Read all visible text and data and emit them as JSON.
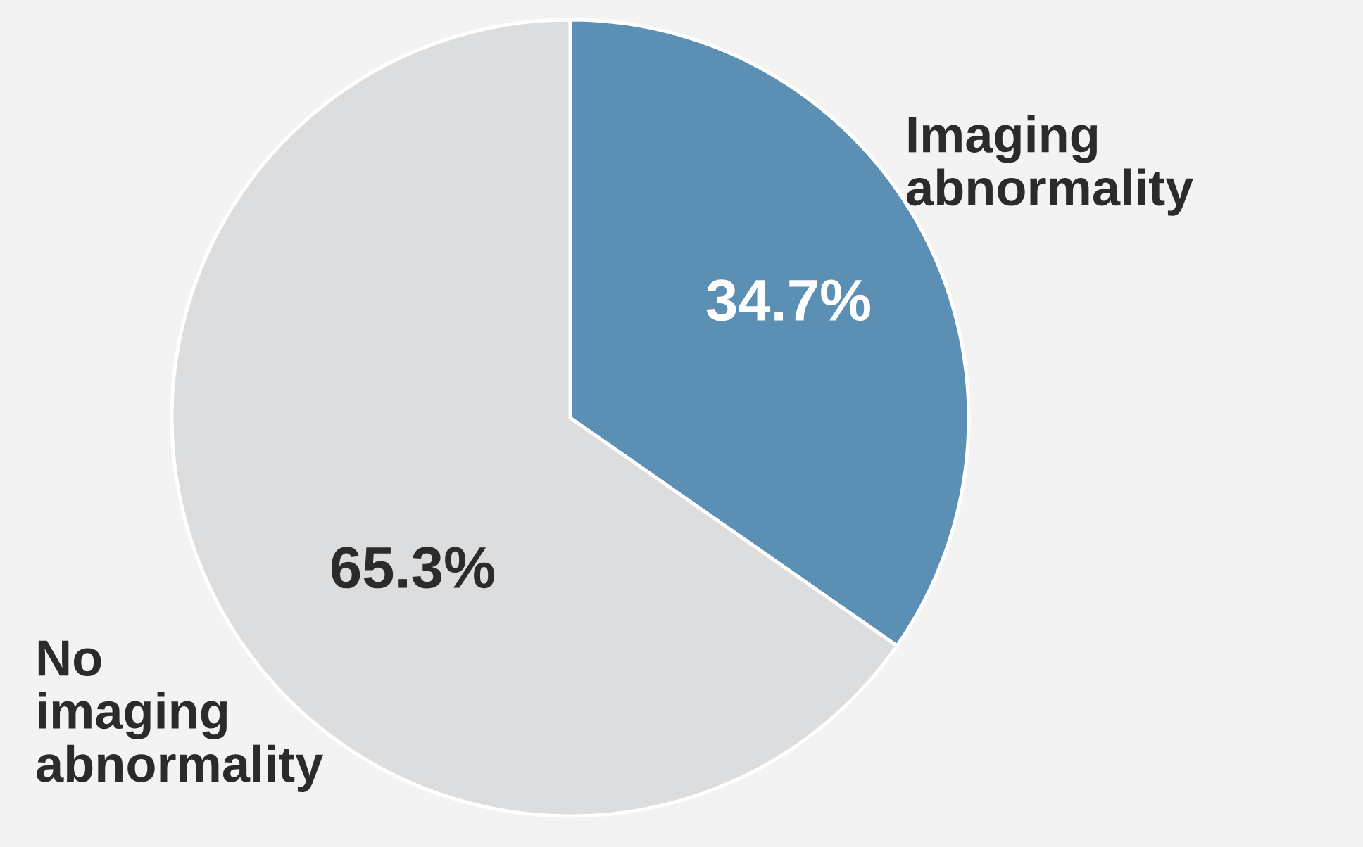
{
  "chart_data": {
    "type": "pie",
    "categories": [
      "Imaging\nabnormality",
      "No\nimaging\nabnormality"
    ],
    "values": [
      34.7,
      65.3
    ],
    "colors": [
      "#5b8fb4",
      "#dcdddf"
    ],
    "value_labels": [
      "34.7%",
      "65.3%"
    ]
  }
}
